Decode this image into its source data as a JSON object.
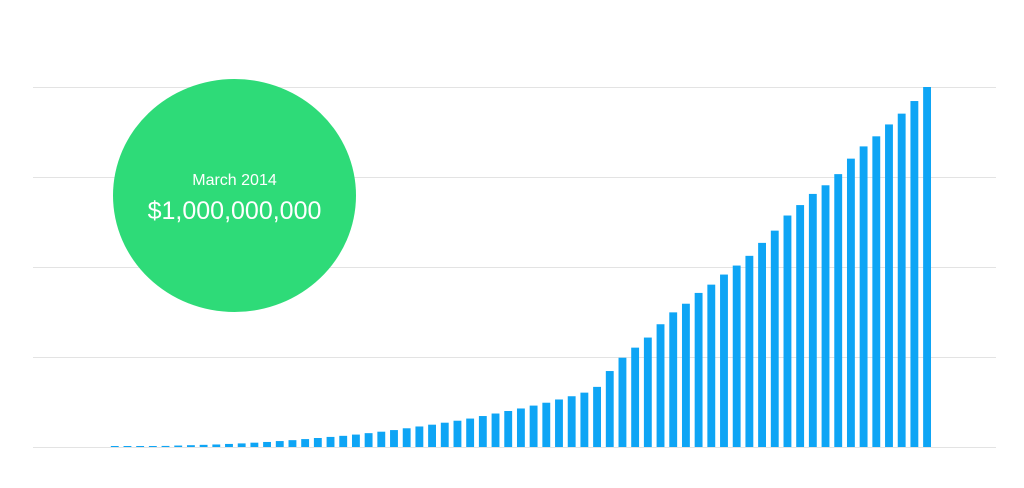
{
  "colors": {
    "bar": "#0ea5f5",
    "grid": "#e3e3e3",
    "callout_bg": "#2edb78",
    "callout_text": "#ffffff"
  },
  "callout": {
    "date": "March 2014",
    "value": "$1,000,000,000"
  },
  "chart_data": {
    "type": "bar",
    "title": "",
    "xlabel": "",
    "ylabel": "",
    "grid": true,
    "ylim": [
      0,
      1000000000
    ],
    "annotation": {
      "category": "March 2014",
      "value": 1000000000,
      "label": "$1,000,000,000"
    },
    "values": [
      1000000,
      1500000,
      2000000,
      2500000,
      3000000,
      4000000,
      5000000,
      6000000,
      7000000,
      8500000,
      10000000,
      12000000,
      14000000,
      16500000,
      19000000,
      22000000,
      25000000,
      28000000,
      31000000,
      34500000,
      38500000,
      42500000,
      47000000,
      52000000,
      57000000,
      62000000,
      67500000,
      73000000,
      79000000,
      86000000,
      93000000,
      100000000,
      107000000,
      115000000,
      123000000,
      132000000,
      141000000,
      151000000,
      167000000,
      211000000,
      248000000,
      276000000,
      304000000,
      341000000,
      374000000,
      398000000,
      428000000,
      451000000,
      479000000,
      504000000,
      531000000,
      567000000,
      601000000,
      643000000,
      672000000,
      703000000,
      727000000,
      758000000,
      801000000,
      835000000,
      863000000,
      896000000,
      926000000,
      961000000,
      1000000000
    ]
  }
}
